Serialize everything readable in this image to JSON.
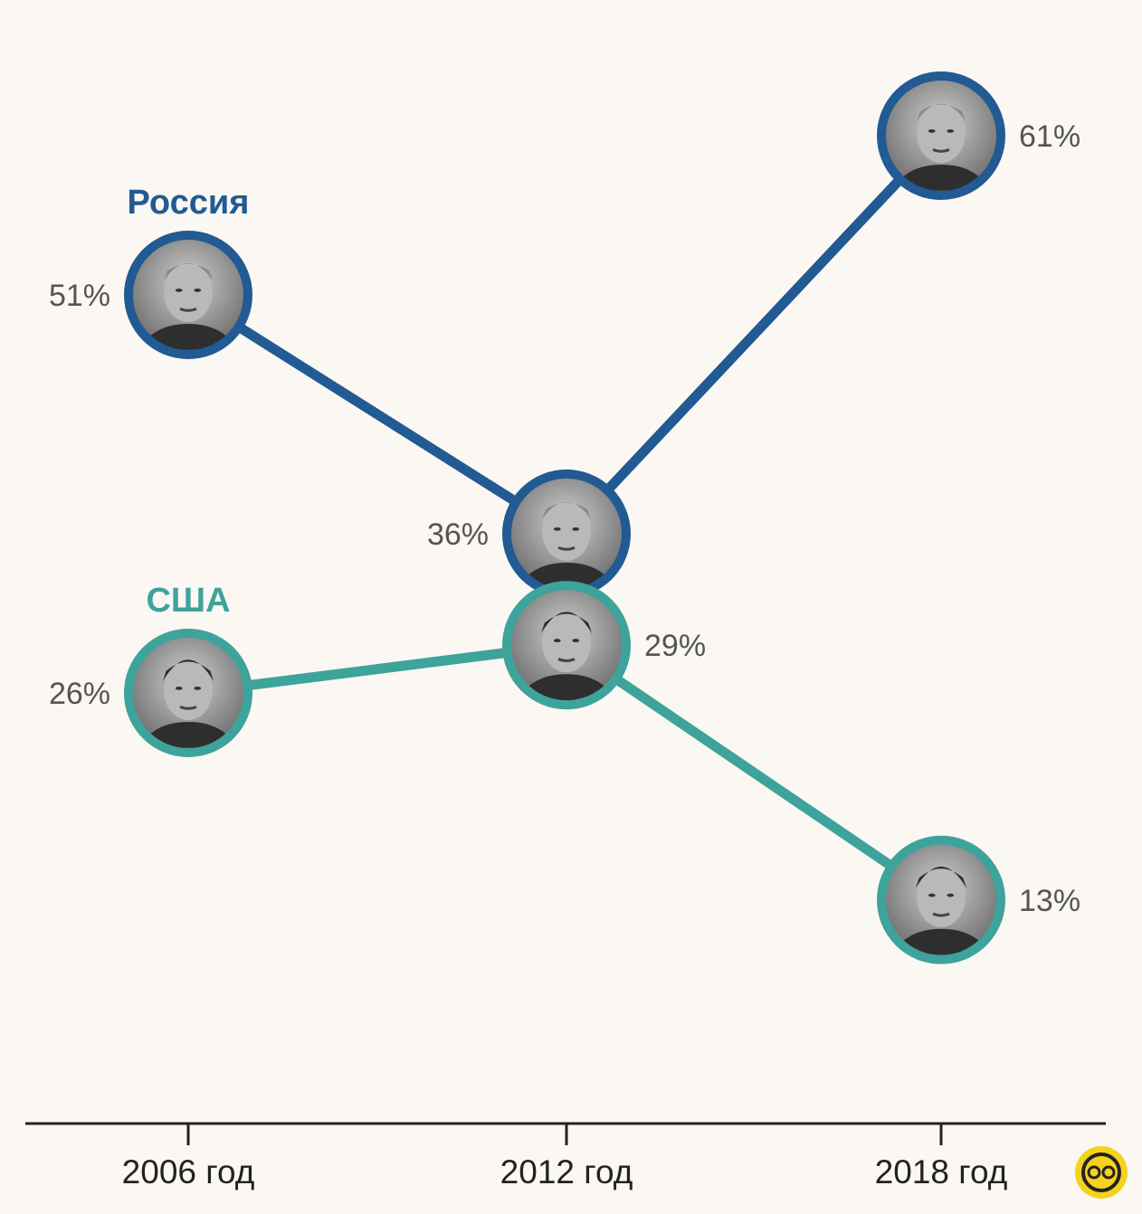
{
  "chart_data": {
    "type": "line",
    "x": [
      "2006 год",
      "2012 год",
      "2018 год"
    ],
    "series": [
      {
        "name": "Россия",
        "values": [
          51,
          36,
          61
        ],
        "labels": [
          "51%",
          "36%",
          "61%"
        ],
        "color": "#225a93",
        "portrait": "portrait-rogozin"
      },
      {
        "name": "США",
        "values": [
          26,
          29,
          13
        ],
        "labels": [
          "26%",
          "29%",
          "13%"
        ],
        "color": "#3ea39a",
        "portrait": "portrait-musk"
      }
    ],
    "ylim": [
      0,
      70
    ],
    "grid": false,
    "legend": "series names printed next to first point",
    "value_label_side": {
      "Россия": [
        "left",
        "left",
        "right"
      ],
      "США": [
        "left",
        "right",
        "right"
      ]
    }
  },
  "badge_icon": "logo-badge-icon",
  "badge_color": "#f5d21c"
}
